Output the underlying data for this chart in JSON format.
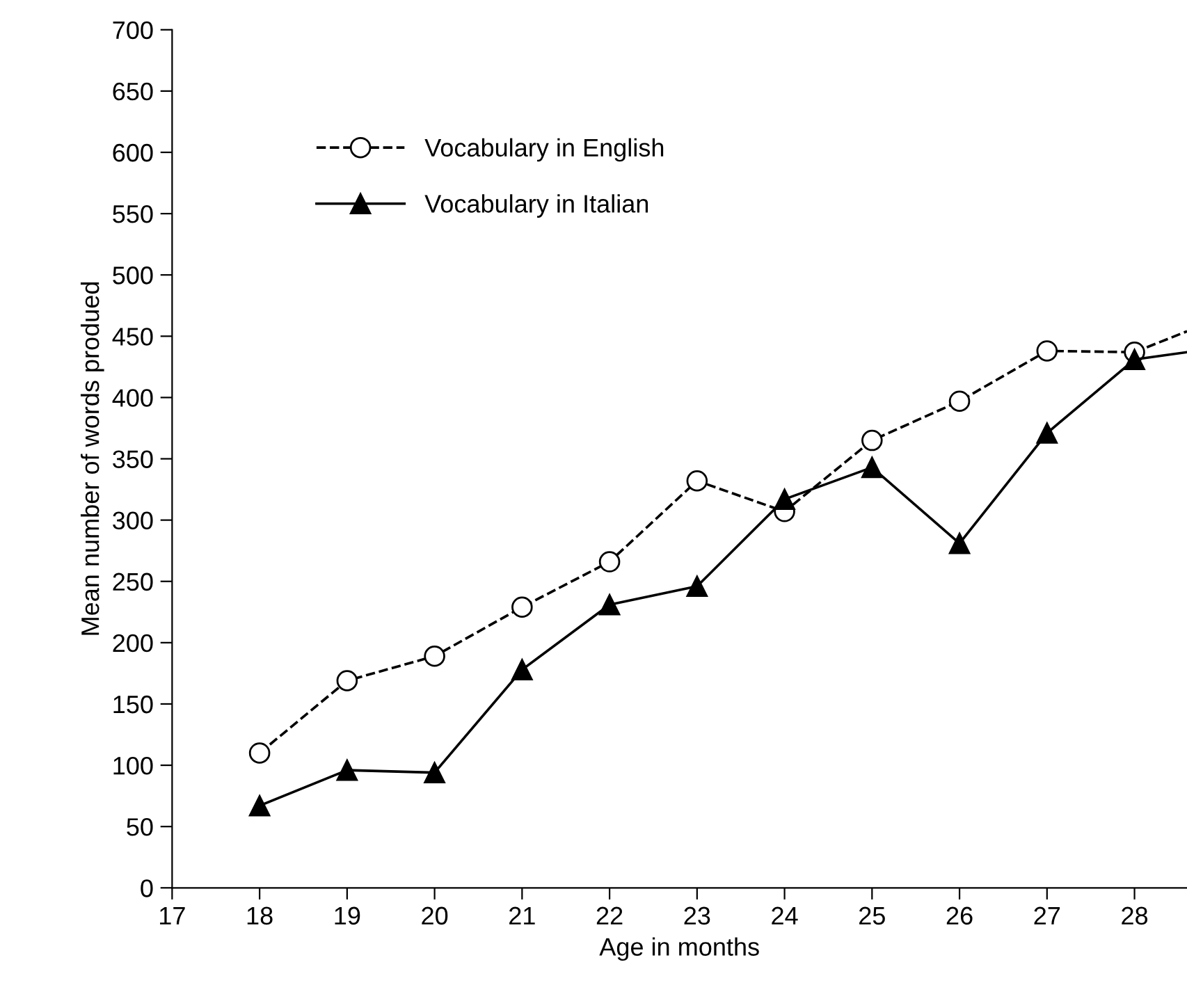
{
  "chart_data": {
    "type": "line",
    "xlabel": "Age in months",
    "ylabel": "Mean number of words produed",
    "xlim": [
      17,
      28.6
    ],
    "xticks": [
      17,
      18,
      19,
      20,
      21,
      22,
      23,
      24,
      25,
      26,
      27,
      28
    ],
    "ylim": [
      0,
      700
    ],
    "yticks": [
      0,
      50,
      100,
      150,
      200,
      250,
      300,
      350,
      400,
      450,
      500,
      550,
      600,
      650,
      700
    ],
    "grid": false,
    "legend": "top left",
    "series": [
      {
        "name": "Vocabulary in English",
        "color": "#000000",
        "marker": "circle",
        "line_style": "dashed",
        "x": [
          18,
          19,
          20,
          21,
          22,
          23,
          24,
          25,
          26,
          27,
          28,
          28.6
        ],
        "values": [
          110,
          169,
          189,
          229,
          266,
          332,
          307,
          365,
          397,
          438,
          437,
          454
        ]
      },
      {
        "name": "Vocabulary in Italian",
        "color": "#000000",
        "marker": "triangle",
        "line_style": "solid",
        "x": [
          18,
          19,
          20,
          21,
          22,
          23,
          24,
          25,
          26,
          27,
          28,
          28.6
        ],
        "values": [
          67,
          96,
          94,
          178,
          231,
          246,
          317,
          343,
          281,
          371,
          431,
          437
        ]
      }
    ]
  }
}
